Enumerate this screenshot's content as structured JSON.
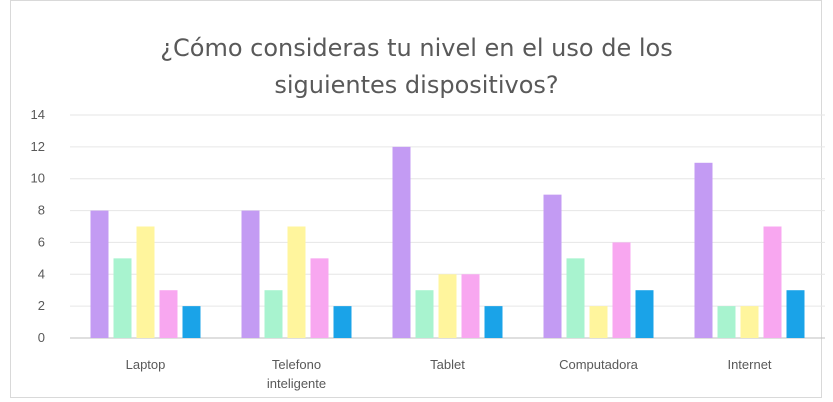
{
  "chart_data": {
    "type": "bar",
    "title_lines": [
      "¿Cómo consideras tu nivel en el uso de los",
      "siguientes dispositivos?"
    ],
    "categories": [
      [
        "Laptop"
      ],
      [
        "Telefono",
        "inteligente"
      ],
      [
        "Tablet"
      ],
      [
        "Computadora"
      ],
      [
        "Internet"
      ]
    ],
    "series": [
      {
        "color": "#c39bf3",
        "values": [
          8,
          8,
          12,
          9,
          11
        ]
      },
      {
        "color": "#a8f3cf",
        "values": [
          5,
          3,
          3,
          5,
          2
        ]
      },
      {
        "color": "#fff59d",
        "values": [
          7,
          7,
          4,
          2,
          2
        ]
      },
      {
        "color": "#f8a7f0",
        "values": [
          3,
          5,
          4,
          6,
          7
        ]
      },
      {
        "color": "#1aa3e8",
        "values": [
          2,
          2,
          2,
          3,
          3
        ]
      }
    ],
    "ylim": [
      0,
      14
    ],
    "yticks": [
      0,
      2,
      4,
      6,
      8,
      10,
      12,
      14
    ],
    "grid": true,
    "legend": "none"
  }
}
